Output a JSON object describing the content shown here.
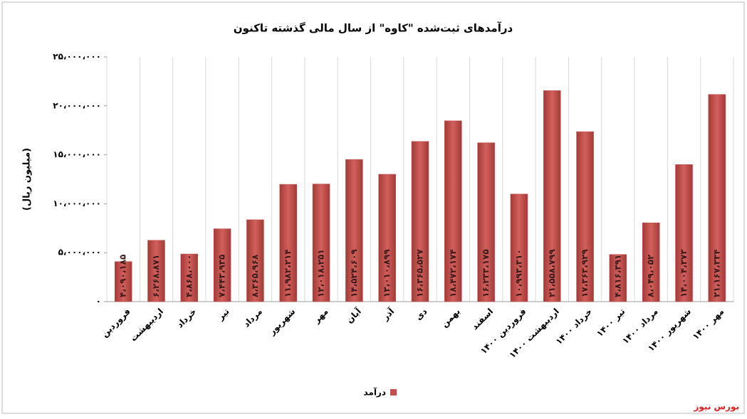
{
  "chart_data": {
    "type": "bar",
    "title": "درآمدهای ثبت‌شده \"کاوه\" از سال مالی گذشته تاکنون",
    "y_label": "(میلیون ریال)",
    "source": "بورس نیوز",
    "categories": [
      "فروردین",
      "اردیبهشت",
      "خرداد",
      "تیر",
      "مرداد",
      "شهریور",
      "مهر",
      "آبان",
      "آذر",
      "دی",
      "بهمن",
      "اسفند",
      "فروردین ۱۴۰۰",
      "اردیبهشت ۱۴۰۰",
      "خرداد ۱۴۰۰",
      "تیر ۱۴۰۰",
      "مرداد ۱۴۰۰",
      "شهریور ۱۴۰۰",
      "مهر ۱۴۰۰"
    ],
    "series": [
      {
        "name": "درآمد",
        "color": "#c0504d",
        "values": [
          4090185,
          6268871,
          4868000,
          7443935,
          8365968,
          11982214,
          12018251,
          14524609,
          13010899,
          16365527,
          18472174,
          16233175,
          10993310,
          21558799,
          17363929,
          4816391,
          8049052,
          14004373,
          21167334
        ],
        "value_labels": [
          "۴،۰۹۰،۱۸۵",
          "۶،۲۶۸،۸۷۱",
          "۴،۸۶۸،۰۰۰",
          "۷،۴۴۳،۹۳۵",
          "۸،۳۶۵،۹۶۸",
          "۱۱،۹۸۲،۲۱۴",
          "۱۲،۰۱۸،۲۵۱",
          "۱۴،۵۲۴،۶۰۹",
          "۱۳،۰۱۰،۸۹۹",
          "۱۶،۳۶۵،۵۲۷",
          "۱۸،۴۷۲،۱۷۴",
          "۱۶،۲۳۳،۱۷۵",
          "۱۰،۹۹۳،۳۱۰",
          "۲۱،۵۵۸،۷۹۹",
          "۱۷،۳۶۳،۹۲۹",
          "۴،۸۱۶،۳۹۱",
          "۸،۰۴۹،۰۵۲",
          "۱۴،۰۰۴،۳۷۳",
          "۲۱،۱۶۷،۳۳۴"
        ]
      }
    ],
    "ylim": [
      0,
      25000000
    ],
    "yticks": [
      {
        "value": 0,
        "label": "۰"
      },
      {
        "value": 5000000,
        "label": "۵،۰۰۰،۰۰۰"
      },
      {
        "value": 10000000,
        "label": "۱۰،۰۰۰،۰۰۰"
      },
      {
        "value": 15000000,
        "label": "۱۵،۰۰۰،۰۰۰"
      },
      {
        "value": 20000000,
        "label": "۲۰،۰۰۰،۰۰۰"
      },
      {
        "value": 25000000,
        "label": "۲۵،۰۰۰،۰۰۰"
      }
    ],
    "legend": "bottom"
  }
}
